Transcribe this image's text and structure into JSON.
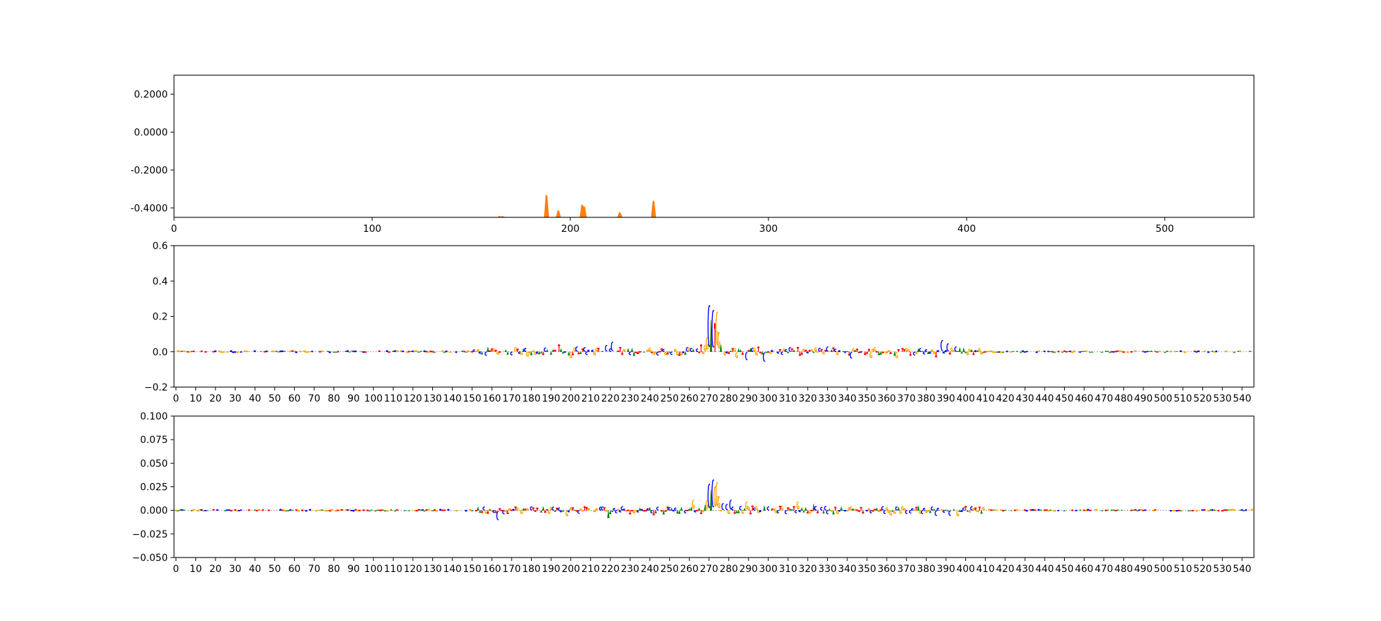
{
  "chart_data": [
    {
      "type": "area",
      "series": [
        {
          "color": "#ff7f0e",
          "peaks": [
            {
              "x": 164.5,
              "y": -0.444
            },
            {
              "x": 166,
              "y": -0.444
            },
            {
              "x": 188,
              "y": -0.334
            },
            {
              "x": 194,
              "y": -0.414
            },
            {
              "x": 206,
              "y": -0.384
            },
            {
              "x": 207,
              "y": -0.392
            },
            {
              "x": 225,
              "y": -0.424
            },
            {
              "x": 242,
              "y": -0.364
            }
          ]
        }
      ],
      "xlim": [
        0,
        545
      ],
      "ylim": [
        -0.45,
        0.3
      ],
      "xticks": [
        0,
        100,
        200,
        300,
        400,
        500
      ],
      "xtick_labels": [
        "0",
        "100",
        "200",
        "300",
        "400",
        "500"
      ],
      "yticks": [
        0.2,
        0.0,
        -0.2,
        -0.4
      ],
      "ytick_labels": [
        "0.2000",
        "0.0000",
        "-0.2000",
        "-0.4000"
      ],
      "grid": false
    },
    {
      "type": "bar",
      "base_colors": {
        "A": "#008000",
        "C": "#0000ff",
        "G": "#ffa500",
        "T": "#ff0000"
      },
      "notable_positions": [
        {
          "pos": 268,
          "base": "G",
          "value": 0.04
        },
        {
          "pos": 269,
          "base": "G",
          "value": 0.09
        },
        {
          "pos": 270,
          "base": "C",
          "value": 0.29
        },
        {
          "pos": 271,
          "base": "A",
          "value": 0.18
        },
        {
          "pos": 272,
          "base": "C",
          "value": 0.26
        },
        {
          "pos": 273,
          "base": "T",
          "value": 0.16
        },
        {
          "pos": 274,
          "base": "G",
          "value": 0.25
        },
        {
          "pos": 275,
          "base": "G",
          "value": 0.12
        },
        {
          "pos": 276,
          "base": "A",
          "value": 0.04
        },
        {
          "pos": 266,
          "base": "T",
          "value": 0.04
        },
        {
          "pos": 221,
          "base": "C",
          "value": 0.06
        },
        {
          "pos": 218,
          "base": "C",
          "value": 0.04
        },
        {
          "pos": 194,
          "base": "T",
          "value": 0.04
        },
        {
          "pos": 203,
          "base": "C",
          "value": 0.03
        },
        {
          "pos": 289,
          "base": "C",
          "value": -0.05
        },
        {
          "pos": 298,
          "base": "C",
          "value": -0.06
        },
        {
          "pos": 284,
          "base": "G",
          "value": -0.04
        },
        {
          "pos": 388,
          "base": "C",
          "value": 0.07
        },
        {
          "pos": 391,
          "base": "C",
          "value": 0.05
        },
        {
          "pos": 385,
          "base": "T",
          "value": -0.03
        },
        {
          "pos": 395,
          "base": "C",
          "value": 0.03
        },
        {
          "pos": 365,
          "base": "G",
          "value": -0.04
        },
        {
          "pos": 342,
          "base": "C",
          "value": -0.04
        },
        {
          "pos": 352,
          "base": "G",
          "value": -0.04
        },
        {
          "pos": 330,
          "base": "C",
          "value": 0.03
        },
        {
          "pos": 200,
          "base": "G",
          "value": -0.04
        },
        {
          "pos": 178,
          "base": "G",
          "value": -0.03
        }
      ],
      "xlim": [
        -1,
        546
      ],
      "ylim": [
        -0.2,
        0.6
      ],
      "xticks": [
        0,
        10,
        20,
        30,
        40,
        50,
        60,
        70,
        80,
        90,
        100,
        110,
        120,
        130,
        140,
        150,
        160,
        170,
        180,
        190,
        200,
        210,
        220,
        230,
        240,
        250,
        260,
        270,
        280,
        290,
        300,
        310,
        320,
        330,
        340,
        350,
        360,
        370,
        380,
        390,
        400,
        410,
        420,
        430,
        440,
        450,
        460,
        470,
        480,
        490,
        500,
        510,
        520,
        530,
        540
      ],
      "yticks": [
        -0.2,
        0.0,
        0.2,
        0.4,
        0.6
      ],
      "ytick_labels": [
        "−0.2",
        "0.0",
        "0.2",
        "0.4",
        "0.6"
      ],
      "grid": false
    },
    {
      "type": "bar",
      "base_colors": {
        "A": "#008000",
        "C": "#0000ff",
        "G": "#ffa500",
        "T": "#ff0000"
      },
      "notable_positions": [
        {
          "pos": 268,
          "base": "A",
          "value": 0.006
        },
        {
          "pos": 269,
          "base": "G",
          "value": 0.012
        },
        {
          "pos": 270,
          "base": "C",
          "value": 0.031
        },
        {
          "pos": 271,
          "base": "A",
          "value": 0.022
        },
        {
          "pos": 272,
          "base": "C",
          "value": 0.036
        },
        {
          "pos": 273,
          "base": "G",
          "value": 0.028
        },
        {
          "pos": 274,
          "base": "G",
          "value": 0.033
        },
        {
          "pos": 275,
          "base": "G",
          "value": 0.016
        },
        {
          "pos": 277,
          "base": "C",
          "value": 0.008
        },
        {
          "pos": 279,
          "base": "C",
          "value": 0.007
        },
        {
          "pos": 281,
          "base": "C",
          "value": 0.012
        },
        {
          "pos": 262,
          "base": "G",
          "value": 0.012
        },
        {
          "pos": 289,
          "base": "G",
          "value": 0.01
        },
        {
          "pos": 315,
          "base": "G",
          "value": 0.01
        },
        {
          "pos": 323,
          "base": "A",
          "value": 0.007
        },
        {
          "pos": 163,
          "base": "C",
          "value": -0.011
        },
        {
          "pos": 219,
          "base": "A",
          "value": -0.008
        },
        {
          "pos": 198,
          "base": "G",
          "value": -0.007
        },
        {
          "pos": 242,
          "base": "T",
          "value": -0.005
        },
        {
          "pos": 385,
          "base": "C",
          "value": -0.006
        },
        {
          "pos": 392,
          "base": "C",
          "value": -0.006
        },
        {
          "pos": 396,
          "base": "G",
          "value": -0.007
        },
        {
          "pos": 362,
          "base": "G",
          "value": -0.006
        },
        {
          "pos": 300,
          "base": "C",
          "value": 0.004
        },
        {
          "pos": 186,
          "base": "A",
          "value": 0.004
        }
      ],
      "xlim": [
        -1,
        546
      ],
      "ylim": [
        -0.05,
        0.1
      ],
      "xticks": [
        0,
        10,
        20,
        30,
        40,
        50,
        60,
        70,
        80,
        90,
        100,
        110,
        120,
        130,
        140,
        150,
        160,
        170,
        180,
        190,
        200,
        210,
        220,
        230,
        240,
        250,
        260,
        270,
        280,
        290,
        300,
        310,
        320,
        330,
        340,
        350,
        360,
        370,
        380,
        390,
        400,
        410,
        420,
        430,
        440,
        450,
        460,
        470,
        480,
        490,
        500,
        510,
        520,
        530,
        540
      ],
      "yticks": [
        -0.05,
        -0.025,
        0.0,
        0.025,
        0.05,
        0.075,
        0.1
      ],
      "ytick_labels": [
        "−0.050",
        "−0.025",
        "0.000",
        "0.025",
        "0.050",
        "0.075",
        "0.100"
      ],
      "grid": false
    }
  ]
}
